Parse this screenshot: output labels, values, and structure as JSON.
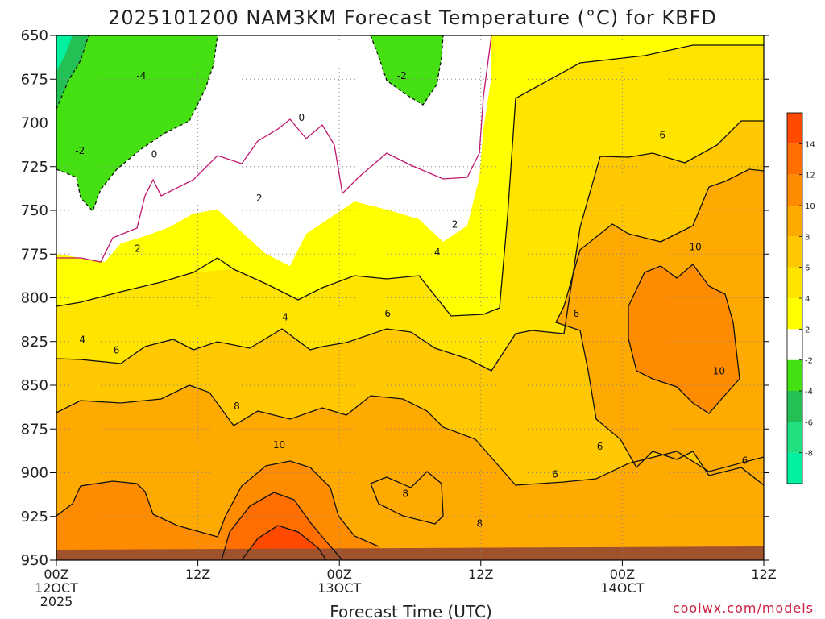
{
  "chart_data": {
    "type": "heatmap",
    "title": "2025101200 NAM3KM Forecast Temperature (°C) for KBFD",
    "xlabel": "Forecast Time (UTC)",
    "ylabel": "",
    "y_ticks": [
      "650",
      "675",
      "700",
      "725",
      "750",
      "775",
      "800",
      "825",
      "850",
      "875",
      "900",
      "925",
      "950"
    ],
    "ylim": [
      650,
      950
    ],
    "x_ticks": [
      {
        "hour": 0,
        "lines": [
          "00Z",
          "12OCT",
          "2025"
        ]
      },
      {
        "hour": 12,
        "lines": [
          "12Z"
        ]
      },
      {
        "hour": 24,
        "lines": [
          "00Z",
          "13OCT"
        ]
      },
      {
        "hour": 36,
        "lines": [
          "12Z"
        ]
      },
      {
        "hour": 48,
        "lines": [
          "00Z",
          "14OCT"
        ]
      },
      {
        "hour": 60,
        "lines": [
          "12Z"
        ]
      }
    ],
    "xlim": [
      0,
      60
    ],
    "grid": true,
    "colorbar": {
      "levels": [
        -10,
        -8,
        -6,
        -4,
        -2,
        2,
        4,
        6,
        8,
        10,
        12,
        14,
        16
      ],
      "tick_labels": [
        "-8",
        "-6",
        "-4",
        "-2",
        "2",
        "4",
        "6",
        "8",
        "10",
        "12",
        "14"
      ],
      "colors": [
        "#00f0a0",
        "#20e080",
        "#22c055",
        "#44e011",
        "#ffffff",
        "#ffff00",
        "#ffe400",
        "#ffc800",
        "#ffaa00",
        "#ff8c00",
        "#ff6e00",
        "#ff4a00"
      ]
    },
    "contour_labels": [
      {
        "text": "-4",
        "hour": 7.2,
        "p": 673
      },
      {
        "text": "-2",
        "hour": 29.3,
        "p": 673
      },
      {
        "text": "-2",
        "hour": 2.0,
        "p": 716
      },
      {
        "text": "0",
        "hour": 20.8,
        "p": 697
      },
      {
        "text": "0",
        "hour": 8.3,
        "p": 718
      },
      {
        "text": "2",
        "hour": 17.2,
        "p": 743
      },
      {
        "text": "2",
        "hour": 33.8,
        "p": 758
      },
      {
        "text": "2",
        "hour": 6.9,
        "p": 772
      },
      {
        "text": "4",
        "hour": 32.3,
        "p": 774
      },
      {
        "text": "4",
        "hour": 19.4,
        "p": 811
      },
      {
        "text": "4",
        "hour": 2.2,
        "p": 824
      },
      {
        "text": "6",
        "hour": 51.4,
        "p": 707
      },
      {
        "text": "6",
        "hour": 28.1,
        "p": 809
      },
      {
        "text": "6",
        "hour": 44.1,
        "p": 809
      },
      {
        "text": "6",
        "hour": 5.1,
        "p": 830
      },
      {
        "text": "6",
        "hour": 46.1,
        "p": 885
      },
      {
        "text": "6",
        "hour": 42.3,
        "p": 901
      },
      {
        "text": "6",
        "hour": 58.4,
        "p": 893
      },
      {
        "text": "8",
        "hour": 15.3,
        "p": 862
      },
      {
        "text": "8",
        "hour": 29.6,
        "p": 912
      },
      {
        "text": "8",
        "hour": 35.9,
        "p": 929
      },
      {
        "text": "10",
        "hour": 54.2,
        "p": 771
      },
      {
        "text": "10",
        "hour": 56.2,
        "p": 842
      },
      {
        "text": "10",
        "hour": 18.9,
        "p": 884
      }
    ]
  },
  "footer": {
    "credit": "coolwx.com/models"
  },
  "colors": {
    "ground": "#a0522d",
    "contour": "#111111",
    "zero_contour": "#c0166e",
    "grid": "#888888"
  }
}
